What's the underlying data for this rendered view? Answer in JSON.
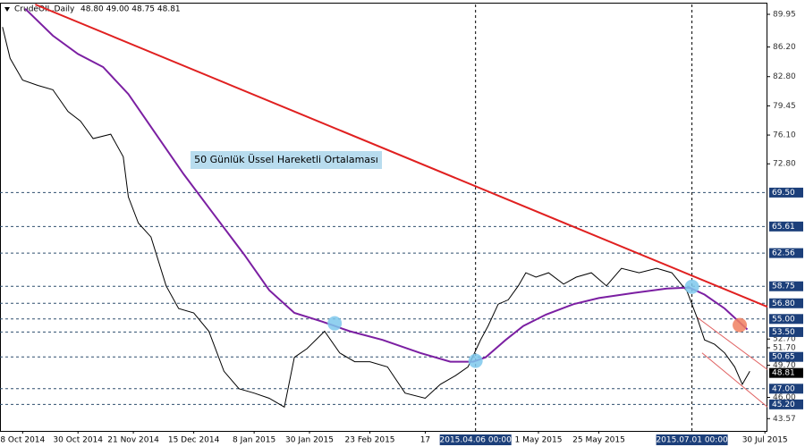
{
  "chart_data": {
    "type": "line",
    "title": "CrudeOIL,Daily",
    "last_bar_text": "48.80 49.00 48.75 48.81",
    "annotation": "50 Günlük Üssel Hareketli Ortalaması",
    "xlim": [
      "2014-09-29",
      "2015-07-31"
    ],
    "ylim": [
      42.16,
      91.08
    ],
    "xticks": [
      {
        "value": "2014-10-08",
        "label": "8 Oct 2014"
      },
      {
        "value": "2014-10-30",
        "label": "30 Oct 2014"
      },
      {
        "value": "2014-11-21",
        "label": "21 Nov 2014"
      },
      {
        "value": "2014-12-15",
        "label": "15 Dec 2014"
      },
      {
        "value": "2015-01-08",
        "label": "8 Jan 2015"
      },
      {
        "value": "2015-01-30",
        "label": "30 Jan 2015"
      },
      {
        "value": "2015-02-23",
        "label": "23 Feb 2015"
      },
      {
        "value": "2015-03-17",
        "label": "17"
      },
      {
        "value": "2015-05-01",
        "label": "1 May 2015"
      },
      {
        "value": "2015-05-25",
        "label": "25 May 2015"
      },
      {
        "value": "2015-07-30",
        "label": "30 Jul 2015"
      }
    ],
    "yticks": [
      {
        "value": 89.95,
        "label": "89.95"
      },
      {
        "value": 86.2,
        "label": "86.20"
      },
      {
        "value": 82.8,
        "label": "82.80"
      },
      {
        "value": 79.45,
        "label": "79.45"
      },
      {
        "value": 76.1,
        "label": "76.10"
      },
      {
        "value": 72.8,
        "label": "72.80"
      },
      {
        "value": 52.7,
        "label": "52.70"
      },
      {
        "value": 51.7,
        "label": "51.70"
      },
      {
        "value": 49.7,
        "label": "49.70"
      },
      {
        "value": 46.0,
        "label": "46.00"
      },
      {
        "value": 43.57,
        "label": "43.57"
      }
    ],
    "levels": [
      {
        "value": 69.5,
        "label": "69.50"
      },
      {
        "value": 65.61,
        "label": "65.61"
      },
      {
        "value": 62.56,
        "label": "62.56"
      },
      {
        "value": 58.75,
        "label": "58.75"
      },
      {
        "value": 56.8,
        "label": "56.80"
      },
      {
        "value": 55.0,
        "label": "55.00"
      },
      {
        "value": 53.5,
        "label": "53.50"
      },
      {
        "value": 50.65,
        "label": "50.65"
      },
      {
        "value": 47.0,
        "label": "47.00"
      },
      {
        "value": 45.2,
        "label": "45.20"
      }
    ],
    "current_price": 48.81,
    "vlines": [
      {
        "value": "2015-04-06",
        "label": "2015.04.06 00:00"
      },
      {
        "value": "2015-07-01",
        "label": "2015.07.01 00:00"
      }
    ],
    "series": [
      {
        "color": "#000000",
        "x": [
          "2014-09-30",
          "2014-10-03",
          "2014-10-08",
          "2014-10-14",
          "2014-10-20",
          "2014-10-26",
          "2014-10-31",
          "2014-11-05",
          "2014-11-12",
          "2014-11-17",
          "2014-11-19",
          "2014-11-23",
          "2014-11-28",
          "2014-12-04",
          "2014-12-09",
          "2014-12-15",
          "2014-12-21",
          "2014-12-27",
          "2015-01-02",
          "2015-01-08",
          "2015-01-14",
          "2015-01-20",
          "2015-01-24",
          "2015-01-29",
          "2015-02-05",
          "2015-02-11",
          "2015-02-17",
          "2015-02-23",
          "2015-03-02",
          "2015-03-09",
          "2015-03-17",
          "2015-03-23",
          "2015-03-29",
          "2015-04-03",
          "2015-04-08",
          "2015-04-11",
          "2015-04-15",
          "2015-04-19",
          "2015-04-23",
          "2015-04-26",
          "2015-04-30",
          "2015-05-05",
          "2015-05-11",
          "2015-05-16",
          "2015-05-22",
          "2015-05-28",
          "2015-06-03",
          "2015-06-10",
          "2015-06-17",
          "2015-06-23",
          "2015-06-29",
          "2015-07-03",
          "2015-07-06",
          "2015-07-10",
          "2015-07-14",
          "2015-07-18",
          "2015-07-21",
          "2015-07-24"
        ],
        "values": [
          88.5,
          84.9,
          82.4,
          81.8,
          81.3,
          78.8,
          77.7,
          75.7,
          76.2,
          73.6,
          69.0,
          66.0,
          64.4,
          58.8,
          56.2,
          55.7,
          53.6,
          49.0,
          47.0,
          46.5,
          45.9,
          44.9,
          50.6,
          51.6,
          53.6,
          51.1,
          50.1,
          50.1,
          49.5,
          46.5,
          45.9,
          47.5,
          48.5,
          49.5,
          52.6,
          54.2,
          56.7,
          57.2,
          58.8,
          60.3,
          59.8,
          60.3,
          59.0,
          59.8,
          60.3,
          58.8,
          60.8,
          60.3,
          60.8,
          60.3,
          58.2,
          55.2,
          52.6,
          52.1,
          51.1,
          49.5,
          47.5,
          49.0
        ]
      },
      {
        "color": "#7b1fa2",
        "x": [
          "2014-10-09",
          "2014-10-20",
          "2014-10-30",
          "2014-11-09",
          "2014-11-19",
          "2014-11-30",
          "2014-12-11",
          "2014-12-23",
          "2015-01-04",
          "2015-01-14",
          "2015-01-24",
          "2015-02-04",
          "2015-02-15",
          "2015-02-28",
          "2015-03-15",
          "2015-03-27",
          "2015-04-05",
          "2015-04-10",
          "2015-04-18",
          "2015-04-25",
          "2015-05-04",
          "2015-05-15",
          "2015-05-25",
          "2015-06-08",
          "2015-06-21",
          "2015-06-30",
          "2015-07-06",
          "2015-07-14",
          "2015-07-23"
        ],
        "values": [
          90.6,
          87.5,
          85.4,
          83.9,
          80.8,
          76.2,
          71.6,
          67.0,
          62.4,
          58.3,
          55.7,
          54.7,
          53.6,
          52.6,
          51.1,
          50.1,
          50.1,
          50.6,
          52.6,
          54.2,
          55.5,
          56.7,
          57.4,
          58.0,
          58.5,
          58.6,
          57.8,
          56.2,
          53.8
        ]
      }
    ],
    "trendlines": [
      {
        "color": "#e02020",
        "x": [
          "2014-10-13",
          "2015-07-31"
        ],
        "values": [
          91.08,
          56.4
        ]
      },
      {
        "color": "#e06060",
        "x": [
          "2015-07-03",
          "2015-07-31"
        ],
        "values": [
          55.2,
          49.2
        ]
      },
      {
        "color": "#e06060",
        "x": [
          "2015-07-05",
          "2015-07-31"
        ],
        "values": [
          51.1,
          44.9
        ]
      }
    ],
    "markers": [
      {
        "color": "#7ec8ec",
        "x": "2015-02-09",
        "value": 54.5
      },
      {
        "color": "#7ec8ec",
        "x": "2015-04-06",
        "value": 50.2
      },
      {
        "color": "#7ec8ec",
        "x": "2015-07-01",
        "value": 58.7
      },
      {
        "color": "#f08060",
        "x": "2015-07-20",
        "value": 54.3
      }
    ]
  }
}
